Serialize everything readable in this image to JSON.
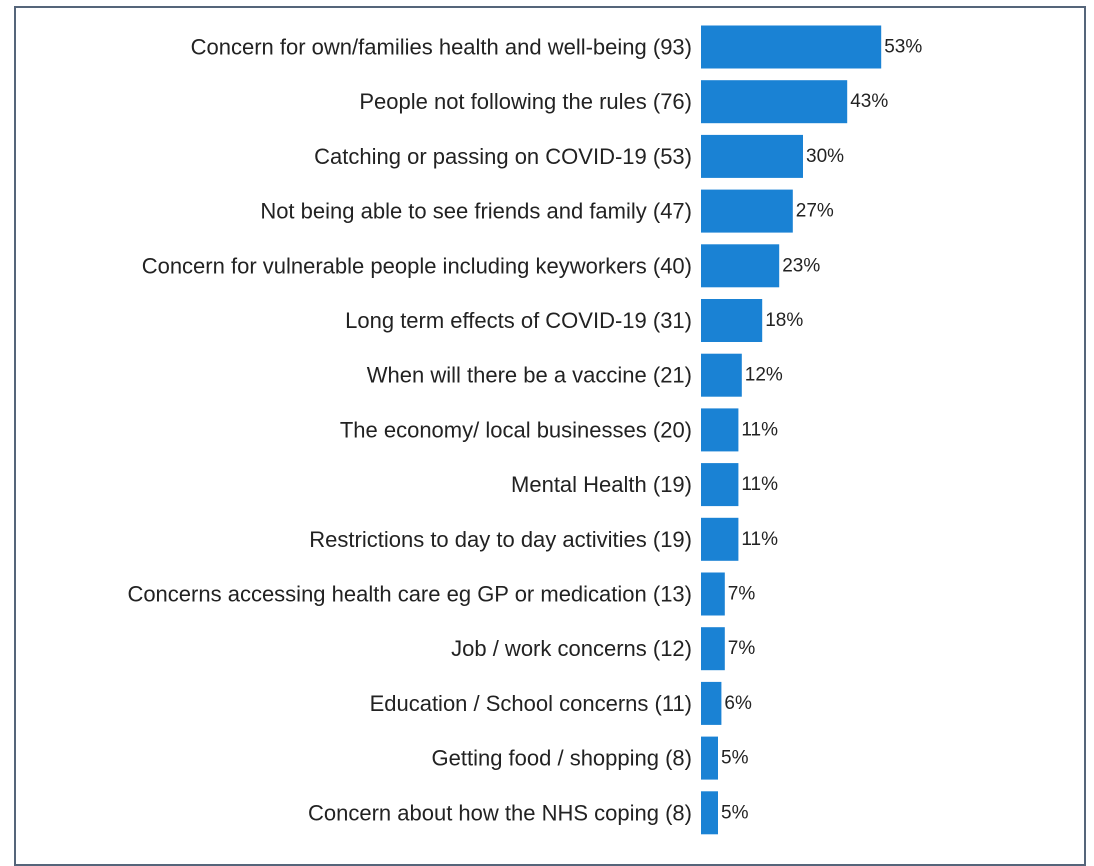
{
  "chart_data": {
    "type": "bar",
    "orientation": "horizontal",
    "categories": [
      "Concern for own/families health and well-being (93)",
      "People not following the rules (76)",
      "Catching or passing on COVID-19 (53)",
      "Not being able to see friends and family  (47)",
      "Concern for vulnerable people including keyworkers (40)",
      "Long term effects of COVID-19 (31)",
      "When will there be a vaccine (21)",
      "The economy/ local businesses (20)",
      "Mental Health (19)",
      "Restrictions to day to day activities (19)",
      "Concerns accessing health care eg GP or medication (13)",
      "Job / work concerns  (12)",
      "Education / School concerns  (11)",
      "Getting food / shopping (8)",
      "Concern about how the NHS coping (8)"
    ],
    "values": [
      53,
      43,
      30,
      27,
      23,
      18,
      12,
      11,
      11,
      11,
      7,
      7,
      6,
      5,
      5
    ],
    "value_labels": [
      "53%",
      "43%",
      "30%",
      "27%",
      "23%",
      "18%",
      "12%",
      "11%",
      "11%",
      "11%",
      "7%",
      "7%",
      "6%",
      "5%",
      "5%"
    ],
    "xlim": [
      0,
      100
    ],
    "grid": false,
    "bar_color": "#1a82d4"
  }
}
